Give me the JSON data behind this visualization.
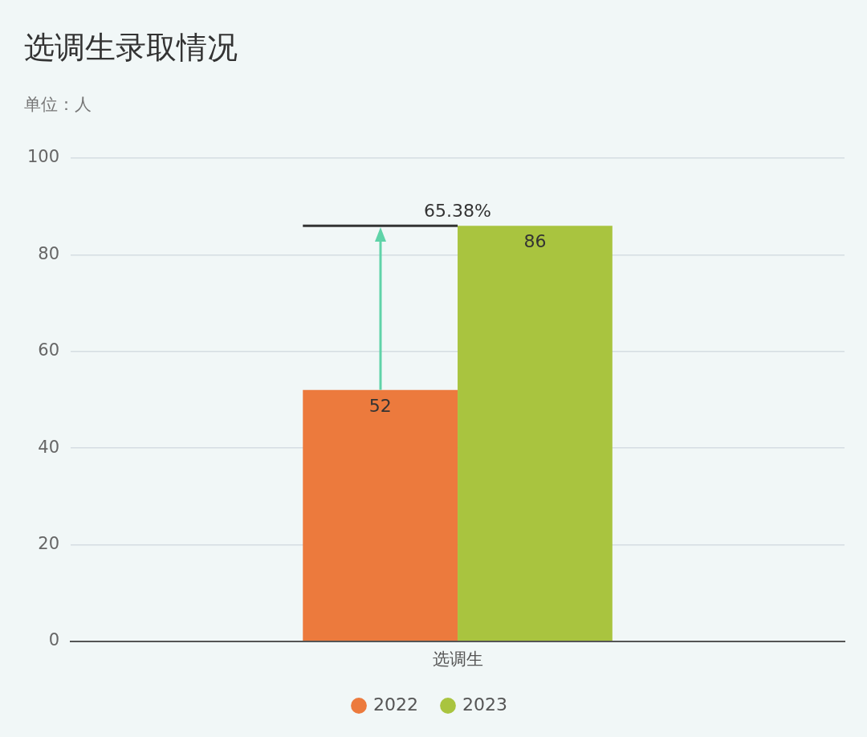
{
  "chart_data": {
    "type": "bar",
    "title": "选调生录取情况",
    "subtitle": "单位：人",
    "categories": [
      "选调生"
    ],
    "series": [
      {
        "name": "2022",
        "color": "#ec7a3d",
        "values": [
          52
        ]
      },
      {
        "name": "2023",
        "color": "#a9c43f",
        "values": [
          86
        ]
      }
    ],
    "ylim": [
      0,
      100
    ],
    "yticks": [
      0,
      20,
      40,
      60,
      80,
      100
    ],
    "grid": "y",
    "legend": "bottom",
    "data_labels": true,
    "annotations": [
      {
        "text": "65.38%",
        "x": "选调生",
        "y": 86
      }
    ]
  }
}
